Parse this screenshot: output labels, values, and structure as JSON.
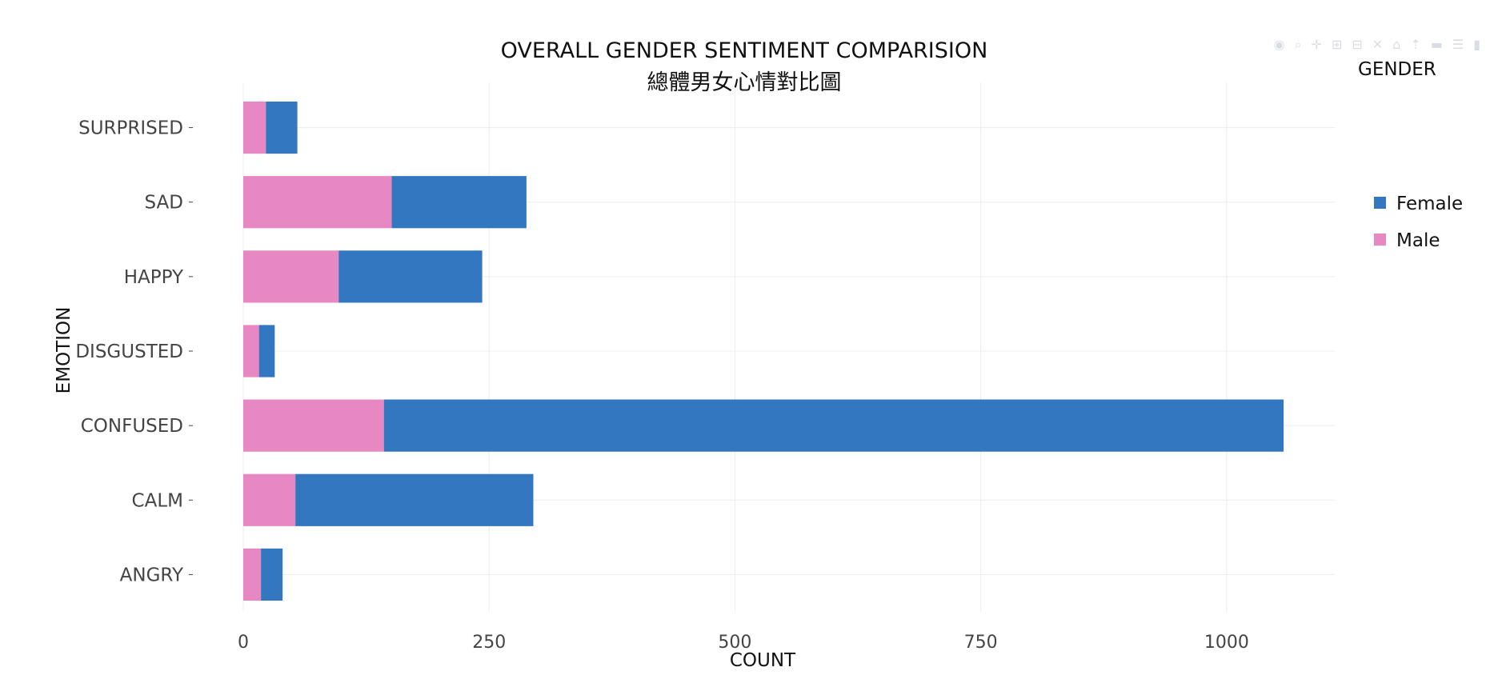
{
  "modebar": {
    "icons": [
      "camera-icon",
      "zoom-icon",
      "pan-icon",
      "zoom-in-icon",
      "zoom-out-icon",
      "autoscale-icon",
      "reset-axes-icon",
      "spike-lines-icon",
      "hover-closest-icon",
      "hover-compare-icon",
      "logo-icon"
    ]
  },
  "chart_data": {
    "type": "bar",
    "orientation": "horizontal",
    "barmode": "stack",
    "title": "OVERALL GENDER SENTIMENT COMPARISION",
    "subtitle": "總體男女心情對比圖",
    "xlabel": "COUNT",
    "ylabel": "EMOTION",
    "xlim": [
      0,
      1110
    ],
    "xticks": [
      0,
      250,
      500,
      750,
      1000
    ],
    "xtick_labels": [
      "0",
      "250",
      "500",
      "750",
      "1000"
    ],
    "grid": true,
    "categories": [
      "ANGRY",
      "CALM",
      "CONFUSED",
      "DISGUSTED",
      "HAPPY",
      "SAD",
      "SURPRISED"
    ],
    "series": [
      {
        "name": "Male",
        "color": "#e788c3",
        "values": [
          18,
          53,
          143,
          16,
          97,
          151,
          23
        ]
      },
      {
        "name": "Female",
        "color": "#3277c0",
        "values": [
          22,
          242,
          915,
          16,
          146,
          137,
          32
        ]
      }
    ],
    "legend": {
      "title": "GENDER",
      "position": "right",
      "order": [
        "Female",
        "Male"
      ]
    }
  }
}
